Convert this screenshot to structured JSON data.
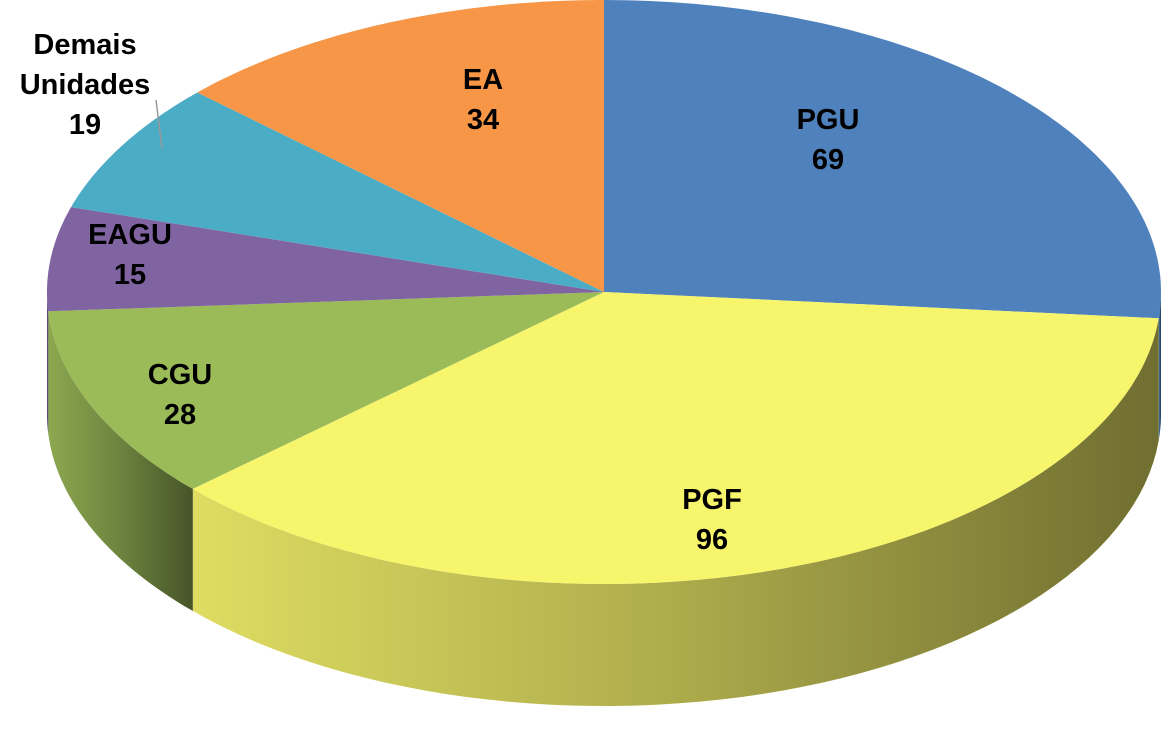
{
  "chart_data": {
    "type": "pie3d",
    "categories": [
      "PGU",
      "PGF",
      "CGU",
      "EAGU",
      "Demais Unidades",
      "EA"
    ],
    "values": [
      69,
      96,
      28,
      15,
      19,
      34
    ],
    "colors": [
      "#4f81bd",
      "#f7f56c",
      "#9bbb59",
      "#8064a2",
      "#4bacc6",
      "#f79646"
    ]
  }
}
